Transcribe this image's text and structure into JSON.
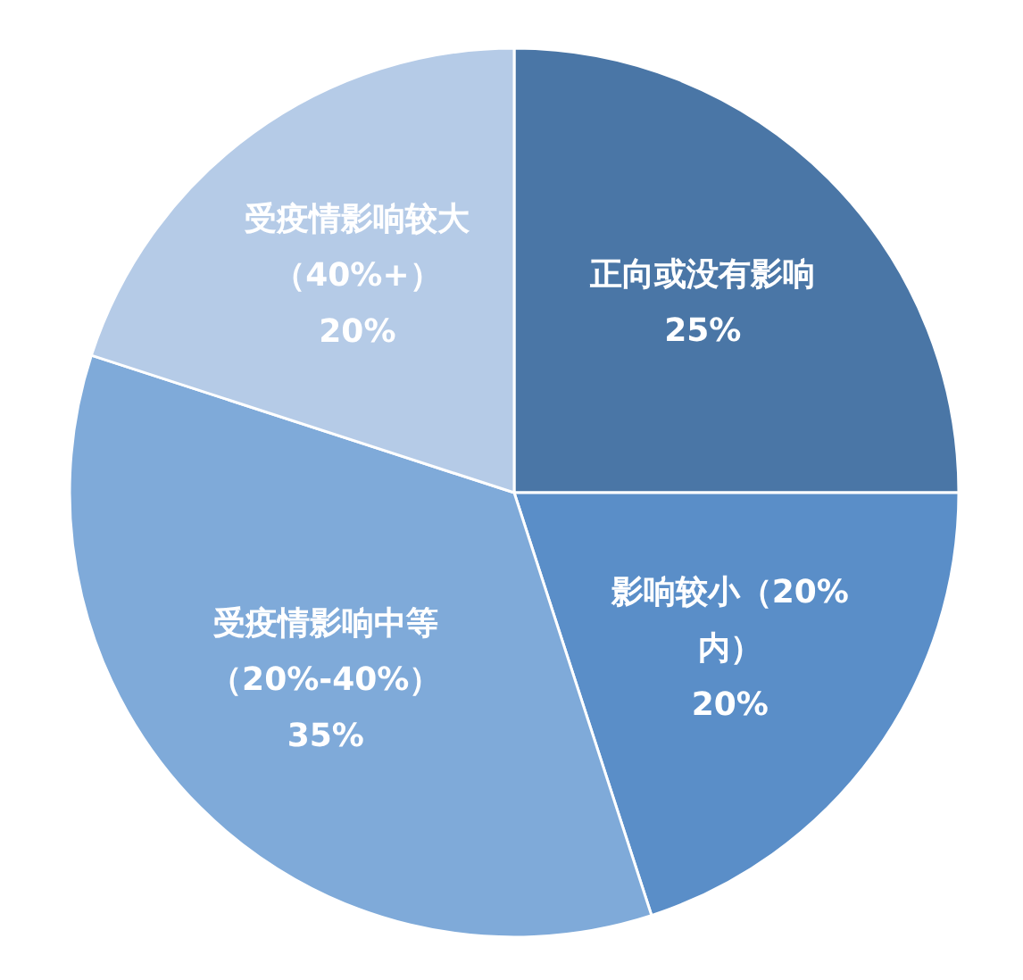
{
  "chart_data": {
    "type": "pie",
    "categories": [
      "正向或没有影响",
      "影响较小（20%内）",
      "受疫情影响中等（20%-40%）",
      "受疫情影响较大（40%+）"
    ],
    "values": [
      25,
      20,
      35,
      20
    ],
    "value_labels": [
      "25%",
      "20%",
      "35%",
      "20%"
    ],
    "colors": [
      "#4a76a6",
      "#5a8ec8",
      "#7faad9",
      "#b5cbe7"
    ]
  }
}
